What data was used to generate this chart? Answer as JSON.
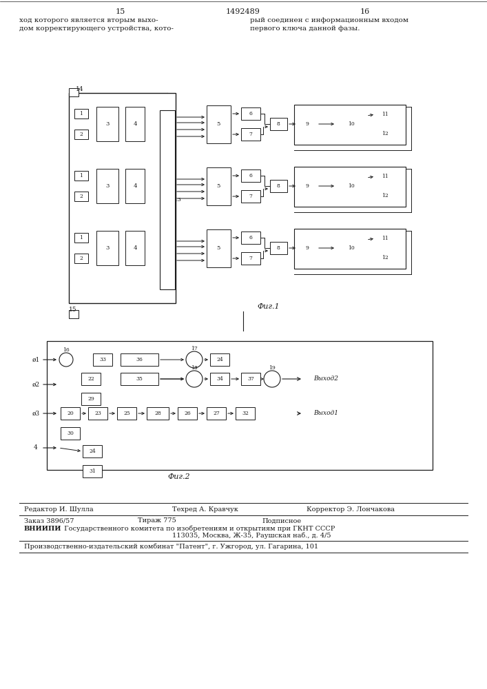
{
  "bg_color": "#ffffff",
  "line_color": "#1a1a1a",
  "fig1_caption": "Фиг.1",
  "fig2_caption": "Фиг.2",
  "page_left": "15",
  "page_center": "1492489",
  "page_right": "16",
  "header_left1": "ход которого является вторым выхо-",
  "header_left2": "дом корректирующего устройства, кото-",
  "header_right1": "рый соединен с информационным входом",
  "header_right2": "первого ключа данной фазы.",
  "footer1_left": "Редактор И. Шулла",
  "footer1_mid": "Техред А. Кравчук",
  "footer1_right": "Корректор Э. Лончакова",
  "footer2_left": "Заказ 3896/57",
  "footer2_mid": "Тираж 775",
  "footer2_right": "Подписное",
  "footer3a": "ВНИИПИ",
  "footer3b": " Государственного комитета по изобретениям и открытиям при ГКНТ СССР",
  "footer4": "113035, Москва, Ж-35, Раушская наб., д. 4/5",
  "footer5": "Производственно-издательский комбинат \"Патент\", г. Ужгород, ул. Гагарина, 101"
}
